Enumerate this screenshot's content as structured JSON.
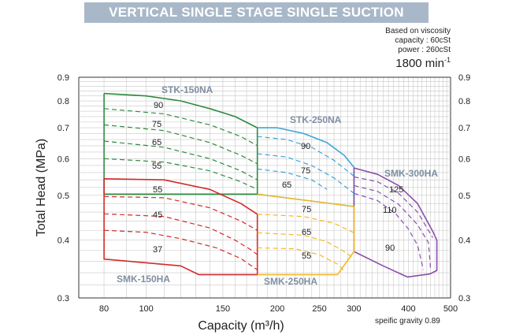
{
  "header": {
    "title": "VERTICAL SINGLE STAGE SINGLE SUCTION",
    "basis_lines": [
      "Based on viscosity",
      "capacity : 60cSt",
      "power : 260cSt"
    ],
    "speed_value": "1800 min",
    "speed_exponent": "-1"
  },
  "colors": {
    "banner": "#a9b8c9",
    "STK-150NA": "#2e8b3e",
    "STK-250NA": "#3aa6d8",
    "SMK-150HA": "#d42a2a",
    "SMK-250HA": "#f3b824",
    "SMK-300HA": "#8a4fa8",
    "label_text": "#7f8fa3"
  },
  "chart_data": {
    "type": "line",
    "title": "VERTICAL SINGLE STAGE SINGLE SUCTION",
    "xlabel": "Capacity (m³/h)",
    "ylabel": "Total Head (MPa)",
    "x_scale": "log",
    "y_scale": "log",
    "xlim": [
      70,
      500
    ],
    "ylim": [
      0.3,
      0.9
    ],
    "x_ticks": [
      80,
      100,
      150,
      200,
      250,
      300,
      400,
      500
    ],
    "y_ticks": [
      0.3,
      0.4,
      0.5,
      0.6,
      0.7,
      0.8,
      0.9
    ],
    "grid": true,
    "footnote": "speific gravity 0.89",
    "series": [
      {
        "name": "STK-150NA",
        "color": "#2e8b3e",
        "envelope": [
          [
            80,
            0.83
          ],
          [
            100,
            0.82
          ],
          [
            120,
            0.8
          ],
          [
            140,
            0.77
          ],
          [
            160,
            0.74
          ],
          [
            180,
            0.7
          ],
          [
            180,
            0.503
          ],
          [
            80,
            0.503
          ],
          [
            80,
            0.83
          ]
        ],
        "efficiency_curves": [
          {
            "label": "90",
            "points": [
              [
                80,
                0.77
              ],
              [
                110,
                0.75
              ],
              [
                140,
                0.71
              ],
              [
                165,
                0.67
              ],
              [
                180,
                0.64
              ]
            ]
          },
          {
            "label": "75",
            "points": [
              [
                80,
                0.71
              ],
              [
                110,
                0.69
              ],
              [
                140,
                0.65
              ],
              [
                165,
                0.61
              ],
              [
                180,
                0.585
              ]
            ]
          },
          {
            "label": "65",
            "points": [
              [
                80,
                0.655
              ],
              [
                110,
                0.635
              ],
              [
                140,
                0.6
              ],
              [
                165,
                0.565
              ],
              [
                180,
                0.54
              ]
            ]
          },
          {
            "label": "55",
            "points": [
              [
                80,
                0.6
              ],
              [
                110,
                0.59
              ],
              [
                140,
                0.565
              ],
              [
                165,
                0.535
              ],
              [
                180,
                0.515
              ]
            ]
          }
        ]
      },
      {
        "name": "STK-250NA",
        "color": "#3aa6d8",
        "envelope": [
          [
            180,
            0.7
          ],
          [
            200,
            0.7
          ],
          [
            230,
            0.68
          ],
          [
            260,
            0.65
          ],
          [
            285,
            0.61
          ],
          [
            300,
            0.575
          ],
          [
            300,
            0.473
          ],
          [
            180,
            0.503
          ]
        ],
        "efficiency_curves": [
          {
            "label": "90",
            "points": [
              [
                180,
                0.67
              ],
              [
                210,
                0.66
              ],
              [
                240,
                0.635
              ],
              [
                270,
                0.595
              ],
              [
                300,
                0.55
              ]
            ]
          },
          {
            "label": "75",
            "points": [
              [
                180,
                0.615
              ],
              [
                210,
                0.605
              ],
              [
                240,
                0.58
              ],
              [
                270,
                0.545
              ],
              [
                300,
                0.505
              ]
            ]
          },
          {
            "label": "65",
            "points": [
              [
                180,
                0.57
              ],
              [
                210,
                0.56
              ],
              [
                240,
                0.54
              ],
              [
                260,
                0.515
              ]
            ]
          }
        ]
      },
      {
        "name": "SMK-300HA",
        "color": "#8a4fa8",
        "envelope": [
          [
            300,
            0.573
          ],
          [
            340,
            0.555
          ],
          [
            380,
            0.525
          ],
          [
            420,
            0.48
          ],
          [
            455,
            0.418
          ],
          [
            465,
            0.4
          ],
          [
            465,
            0.344
          ],
          [
            448,
            0.338
          ],
          [
            398,
            0.333
          ],
          [
            350,
            0.352
          ],
          [
            300,
            0.378
          ],
          [
            300,
            0.573
          ]
        ],
        "efficiency_curves": [
          {
            "label": "125",
            "points": [
              [
                300,
                0.548
              ],
              [
                340,
                0.535
              ],
              [
                380,
                0.505
              ],
              [
                420,
                0.46
              ],
              [
                455,
                0.405
              ]
            ]
          },
          {
            "label": "110",
            "points": [
              [
                300,
                0.525
              ],
              [
                340,
                0.51
              ],
              [
                380,
                0.478
              ],
              [
                420,
                0.432
              ],
              [
                445,
                0.395
              ],
              [
                450,
                0.345
              ]
            ]
          },
          {
            "label": "90",
            "points": [
              [
                300,
                0.505
              ],
              [
                340,
                0.487
              ],
              [
                375,
                0.455
              ],
              [
                400,
                0.423
              ],
              [
                420,
                0.39
              ],
              [
                433,
                0.345
              ]
            ]
          }
        ]
      },
      {
        "name": "SMK-150HA",
        "color": "#d42a2a",
        "envelope": [
          [
            80,
            0.543
          ],
          [
            110,
            0.54
          ],
          [
            140,
            0.515
          ],
          [
            165,
            0.48
          ],
          [
            180,
            0.455
          ],
          [
            180,
            0.337
          ],
          [
            132,
            0.337
          ],
          [
            120,
            0.352
          ],
          [
            80,
            0.364
          ],
          [
            80,
            0.543
          ]
        ],
        "efficiency_curves": [
          {
            "label": "55",
            "points": [
              [
                80,
                0.497
              ],
              [
                110,
                0.494
              ],
              [
                140,
                0.47
              ],
              [
                165,
                0.44
              ],
              [
                180,
                0.42
              ]
            ]
          },
          {
            "label": "45",
            "points": [
              [
                80,
                0.456
              ],
              [
                110,
                0.45
              ],
              [
                140,
                0.425
              ],
              [
                160,
                0.4
              ],
              [
                175,
                0.38
              ],
              [
                180,
                0.372
              ]
            ]
          },
          {
            "label": "37",
            "points": [
              [
                80,
                0.42
              ],
              [
                100,
                0.416
              ],
              [
                120,
                0.403
              ],
              [
                145,
                0.385
              ],
              [
                165,
                0.365
              ],
              [
                180,
                0.345
              ]
            ]
          }
        ]
      },
      {
        "name": "SMK-250HA",
        "color": "#f3b824",
        "envelope": [
          [
            180,
            0.503
          ],
          [
            300,
            0.473
          ],
          [
            300,
            0.378
          ],
          [
            275,
            0.337
          ],
          [
            180,
            0.337
          ]
        ],
        "efficiency_curves": [
          {
            "label": "75",
            "points": [
              [
                180,
                0.455
              ],
              [
                230,
                0.45
              ],
              [
                270,
                0.435
              ],
              [
                300,
                0.415
              ]
            ]
          },
          {
            "label": "65",
            "points": [
              [
                180,
                0.415
              ],
              [
                230,
                0.41
              ],
              [
                260,
                0.397
              ],
              [
                285,
                0.378
              ],
              [
                300,
                0.365
              ]
            ]
          },
          {
            "label": "55",
            "points": [
              [
                180,
                0.385
              ],
              [
                220,
                0.383
              ],
              [
                250,
                0.372
              ],
              [
                275,
                0.355
              ],
              [
                285,
                0.343
              ]
            ]
          }
        ]
      }
    ]
  }
}
